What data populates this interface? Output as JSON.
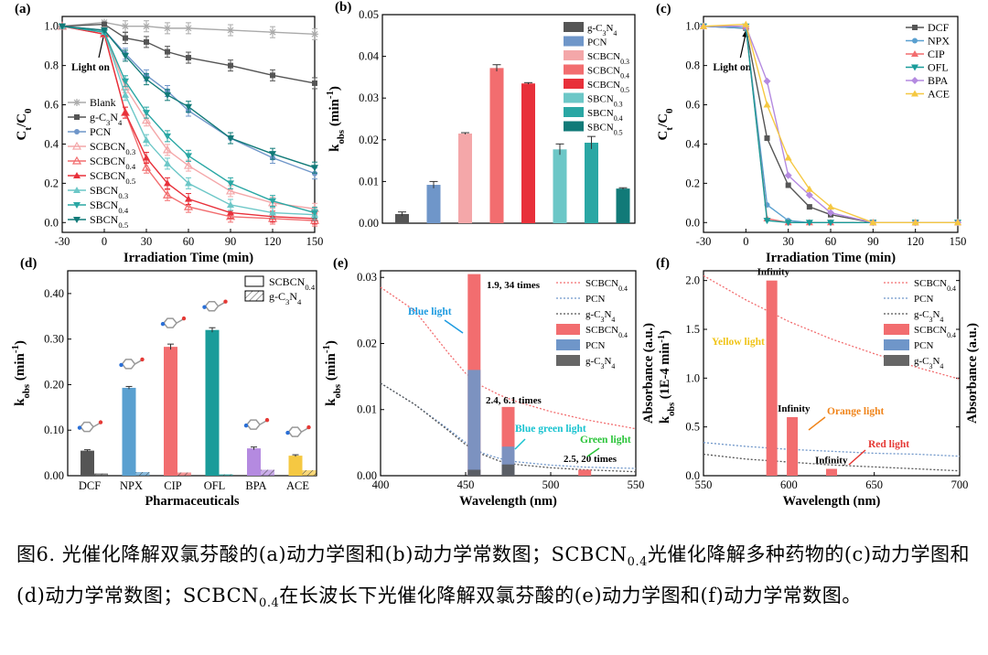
{
  "caption": {
    "part1": "图6. 光催化降解双氯芬酸的(a)动力学图和(b)动力学常数图；SCBCN",
    "sub1": "0.4",
    "part2": "光催化降解多种药物的(c)动力学图和(d)动力学常数图；SCBCN",
    "sub2": "0.4",
    "part3": "在长波长下光催化降解双氯芬酸的(e)动力学图和(f)动力学常数图。"
  },
  "colors": {
    "blank": "#aaaaaa",
    "gc3n4": "#555555",
    "pcn": "#6f96c9",
    "scbcn03": "#f4a7a9",
    "scbcn04": "#f26d6f",
    "scbcn05": "#e8303a",
    "sbcn03": "#6cc7c7",
    "sbcn04": "#2aa7a4",
    "sbcn05": "#117a78",
    "dcf": "#555555",
    "npx": "#5aa0d0",
    "cip": "#f26d6f",
    "ofl": "#1a9c9a",
    "bpa": "#b48ae0",
    "ace": "#f5c842"
  },
  "chart_data": [
    {
      "id": "a",
      "label": "(a)",
      "type": "line",
      "xlabel": "Irradiation Time (min)",
      "ylabel": "Ct/C0",
      "xlim": [
        -30,
        150
      ],
      "ylim": [
        -0.05,
        1.05
      ],
      "xticks": [
        -30,
        0,
        30,
        60,
        90,
        120,
        150
      ],
      "yticks": [
        0.0,
        0.2,
        0.4,
        0.6,
        0.8,
        1.0
      ],
      "annotation": "Light on",
      "x": [
        -30,
        0,
        15,
        30,
        45,
        60,
        90,
        120,
        150
      ],
      "series": [
        {
          "name": "Blank",
          "color_key": "blank",
          "values": [
            1.0,
            1.02,
            1.0,
            1.0,
            0.99,
            0.99,
            0.98,
            0.97,
            0.96
          ]
        },
        {
          "name": "g-C3N4",
          "color_key": "gc3n4",
          "values": [
            1.0,
            1.01,
            0.94,
            0.92,
            0.87,
            0.84,
            0.8,
            0.75,
            0.71
          ]
        },
        {
          "name": "PCN",
          "color_key": "pcn",
          "values": [
            1.0,
            0.98,
            0.86,
            0.75,
            0.67,
            0.57,
            0.43,
            0.33,
            0.25
          ]
        },
        {
          "name": "SCBCN0.3",
          "color_key": "scbcn03",
          "values": [
            1.0,
            0.97,
            0.69,
            0.52,
            0.37,
            0.29,
            0.16,
            0.1,
            0.07
          ]
        },
        {
          "name": "SCBCN0.4",
          "color_key": "scbcn04",
          "values": [
            1.0,
            0.96,
            0.56,
            0.28,
            0.14,
            0.08,
            0.03,
            0.02,
            0.01
          ]
        },
        {
          "name": "SCBCN0.5",
          "color_key": "scbcn05",
          "values": [
            1.0,
            0.96,
            0.56,
            0.33,
            0.2,
            0.12,
            0.05,
            0.03,
            0.02
          ]
        },
        {
          "name": "SBCN0.3",
          "color_key": "sbcn03",
          "values": [
            1.0,
            0.97,
            0.65,
            0.42,
            0.3,
            0.2,
            0.09,
            0.05,
            0.04
          ]
        },
        {
          "name": "SBCN0.4",
          "color_key": "sbcn04",
          "values": [
            1.0,
            0.97,
            0.72,
            0.56,
            0.44,
            0.34,
            0.2,
            0.11,
            0.05
          ]
        },
        {
          "name": "SBCN0.5",
          "color_key": "sbcn05",
          "values": [
            1.0,
            0.98,
            0.85,
            0.73,
            0.65,
            0.59,
            0.43,
            0.35,
            0.28
          ]
        }
      ]
    },
    {
      "id": "b",
      "label": "(b)",
      "type": "bar",
      "ylabel": "kobs (min-1)",
      "ylim": [
        0,
        0.05
      ],
      "yticks": [
        0.0,
        0.01,
        0.02,
        0.03,
        0.04,
        0.05
      ],
      "categories": [
        "g-C3N4",
        "PCN",
        "SCBCN0.3",
        "SCBCN0.4",
        "SCBCN0.5",
        "SBCN0.3",
        "SBCN0.4",
        "SBCN0.5"
      ],
      "color_keys": [
        "gc3n4",
        "pcn",
        "scbcn03",
        "scbcn04",
        "scbcn05",
        "sbcn03",
        "sbcn04",
        "sbcn05"
      ],
      "values": [
        0.0022,
        0.0092,
        0.0215,
        0.0372,
        0.0335,
        0.0177,
        0.0193,
        0.0083
      ],
      "errors": [
        0.0005,
        0.0008,
        0.0002,
        0.0008,
        0.0002,
        0.0013,
        0.0015,
        0.0002
      ]
    },
    {
      "id": "c",
      "label": "(c)",
      "type": "line",
      "xlabel": "Irradiation Time (min)",
      "ylabel": "Ct/C0",
      "xlim": [
        -30,
        150
      ],
      "ylim": [
        -0.05,
        1.05
      ],
      "xticks": [
        -30,
        0,
        30,
        60,
        90,
        120,
        150
      ],
      "yticks": [
        0.0,
        0.2,
        0.4,
        0.6,
        0.8,
        1.0
      ],
      "annotation": "Light on",
      "x": [
        -30,
        0,
        15,
        30,
        45,
        60,
        90,
        120,
        150
      ],
      "series": [
        {
          "name": "DCF",
          "color_key": "dcf",
          "values": [
            1.0,
            0.99,
            0.43,
            0.19,
            0.08,
            0.04,
            0.0,
            0.0,
            0.0
          ]
        },
        {
          "name": "NPX",
          "color_key": "npx",
          "values": [
            1.0,
            0.99,
            0.09,
            0.01,
            0.0,
            0.0,
            0.0,
            0.0,
            0.0
          ]
        },
        {
          "name": "CIP",
          "color_key": "cip",
          "values": [
            1.0,
            1.0,
            0.02,
            0.0,
            0.0,
            0.0,
            0.0,
            0.0,
            0.0
          ]
        },
        {
          "name": "OFL",
          "color_key": "ofl",
          "values": [
            1.0,
            1.0,
            0.01,
            0.0,
            0.0,
            0.0,
            0.0,
            0.0,
            0.0
          ]
        },
        {
          "name": "BPA",
          "color_key": "bpa",
          "values": [
            1.0,
            1.0,
            0.72,
            0.24,
            0.14,
            0.05,
            0.0,
            0.0,
            0.0
          ]
        },
        {
          "name": "ACE",
          "color_key": "ace",
          "values": [
            1.0,
            1.01,
            0.6,
            0.33,
            0.17,
            0.08,
            0.0,
            0.0,
            0.0
          ]
        }
      ]
    },
    {
      "id": "d",
      "label": "(d)",
      "type": "bar",
      "xlabel": "Pharmaceuticals",
      "ylabel": "kobs (min-1)",
      "ylim": [
        0,
        0.45
      ],
      "yticks": [
        0.0,
        0.1,
        0.2,
        0.3,
        0.4
      ],
      "categories": [
        "DCF",
        "NPX",
        "CIP",
        "OFL",
        "BPA",
        "ACE"
      ],
      "color_keys": [
        "dcf",
        "npx",
        "cip",
        "ofl",
        "bpa",
        "ace"
      ],
      "series": [
        {
          "name": "SCBCN0.4",
          "values": [
            0.055,
            0.193,
            0.283,
            0.32,
            0.06,
            0.044
          ],
          "errors": [
            0.002,
            0.003,
            0.006,
            0.005,
            0.003,
            0.002
          ]
        },
        {
          "name": "g-C3N4",
          "values": [
            0.005,
            0.008,
            0.007,
            0.003,
            0.013,
            0.012
          ],
          "errors": [
            0,
            0,
            0,
            0,
            0,
            0
          ]
        }
      ]
    },
    {
      "id": "e",
      "label": "(e)",
      "type": "bar+line",
      "xlabel": "Wavelength (nm)",
      "ylabel": "kobs (min-1)",
      "xlim": [
        400,
        550
      ],
      "ylim": [
        0,
        0.031
      ],
      "xticks": [
        400,
        450,
        500,
        550
      ],
      "yticks": [
        0.0,
        0.01,
        0.02,
        0.03
      ],
      "bars": [
        {
          "x": 455,
          "scbcn": 0.0305,
          "pcn": 0.016,
          "gcn": 0.0009
        },
        {
          "x": 475,
          "scbcn": 0.0104,
          "pcn": 0.0044,
          "gcn": 0.0017
        },
        {
          "x": 520,
          "scbcn": 0.0009,
          "pcn": 0.0,
          "gcn": 0.0
        }
      ],
      "absorbance": {
        "x": [
          400,
          420,
          440,
          450,
          460,
          470,
          480,
          500,
          520,
          550
        ],
        "scbcn": [
          0.0285,
          0.025,
          0.0185,
          0.0155,
          0.0135,
          0.0122,
          0.0112,
          0.0097,
          0.0085,
          0.0071
        ],
        "pcn": [
          0.014,
          0.0108,
          0.007,
          0.005,
          0.0034,
          0.0026,
          0.0021,
          0.0016,
          0.0013,
          0.0011
        ],
        "gcn": [
          0.014,
          0.0108,
          0.0068,
          0.0047,
          0.0032,
          0.0022,
          0.0017,
          0.0012,
          0.0009,
          0.0006
        ]
      },
      "annotations": [
        "Blue light",
        "Blue green light",
        "Green light",
        "1.9, 34 times",
        "2.4, 6.1 times",
        "2.5, 20 times"
      ],
      "legend": [
        "SCBCN0.4",
        "PCN",
        "g-C3N4",
        "SCBCN0.4",
        "PCN",
        "g-C3N4"
      ]
    },
    {
      "id": "f",
      "label": "(f)",
      "type": "bar+line",
      "xlabel": "Wavelength (nm)",
      "ylabel": "kobs (1E-4 min-1)",
      "ylabel_left": "Absorbance (a.u.)",
      "ylabel_right": "Absorbance (a.u.)",
      "xlim": [
        550,
        700
      ],
      "ylim": [
        0,
        2.1
      ],
      "xticks": [
        550,
        600,
        650,
        700
      ],
      "yticks": [
        0.0,
        0.5,
        1.0,
        1.5,
        2.0
      ],
      "bars": [
        {
          "x": 590,
          "value": 2.0,
          "label": "Infinity"
        },
        {
          "x": 602,
          "value": 0.6,
          "label": "Infinity"
        },
        {
          "x": 625,
          "value": 0.07,
          "label": "Infinity"
        }
      ],
      "absorbance": {
        "x": [
          550,
          575,
          600,
          625,
          650,
          675,
          700
        ],
        "scbcn": [
          2.05,
          1.8,
          1.58,
          1.4,
          1.25,
          1.11,
          0.99
        ],
        "pcn": [
          0.34,
          0.3,
          0.27,
          0.25,
          0.23,
          0.22,
          0.2
        ],
        "gcn": [
          0.22,
          0.17,
          0.14,
          0.11,
          0.09,
          0.07,
          0.05
        ]
      },
      "annotations": [
        "Yellow light",
        "Orange light",
        "Red light"
      ],
      "legend": [
        "SCBCN0.4",
        "PCN",
        "g-C3N4",
        "SCBCN0.4",
        "PCN",
        "g-C3N4"
      ]
    }
  ]
}
